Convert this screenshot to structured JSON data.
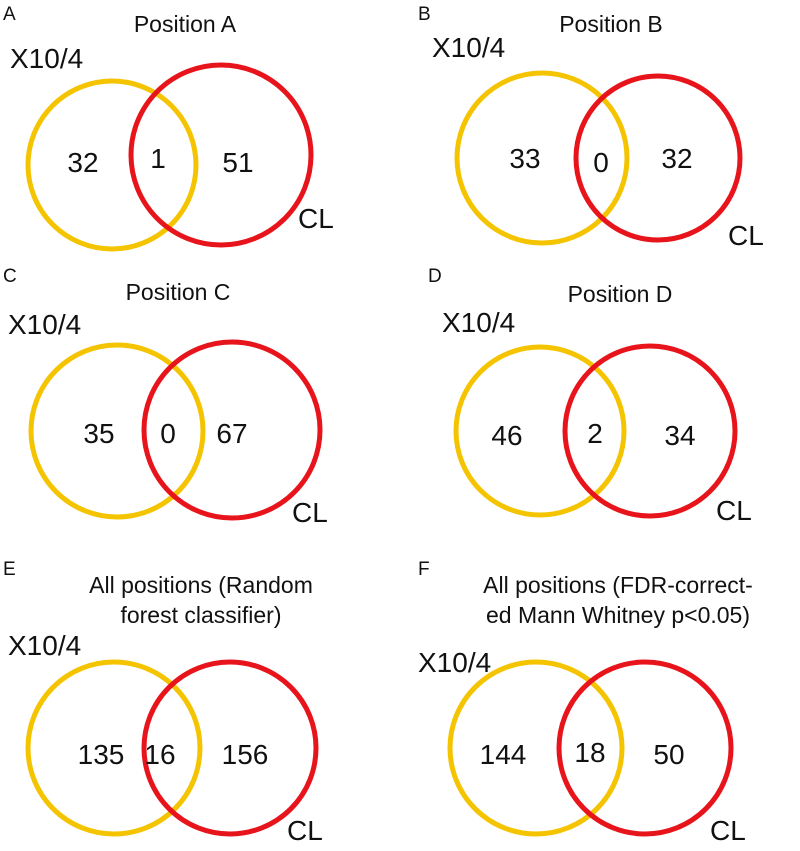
{
  "colors": {
    "set_a": "#f5c400",
    "set_b": "#e8141c",
    "text": "#111111",
    "background": "#ffffff"
  },
  "panels": [
    {
      "letter": "A",
      "title": [
        "Position A"
      ],
      "left_label": "X10/4",
      "right_label": "CL",
      "left_only": "32",
      "overlap": "1",
      "right_only": "51"
    },
    {
      "letter": "B",
      "title": [
        "Position B"
      ],
      "left_label": "X10/4",
      "right_label": "CL",
      "left_only": "33",
      "overlap": "0",
      "right_only": "32"
    },
    {
      "letter": "C",
      "title": [
        "Position C"
      ],
      "left_label": "X10/4",
      "right_label": "CL",
      "left_only": "35",
      "overlap": "0",
      "right_only": "67"
    },
    {
      "letter": "D",
      "title": [
        "Position D"
      ],
      "left_label": "X10/4",
      "right_label": "CL",
      "left_only": "46",
      "overlap": "2",
      "right_only": "34"
    },
    {
      "letter": "E",
      "title": [
        "All positions (Random",
        "forest classifier)"
      ],
      "left_label": "X10/4",
      "right_label": "CL",
      "left_only": "135",
      "overlap": "16",
      "right_only": "156"
    },
    {
      "letter": "F",
      "title": [
        "All positions (FDR-correct-",
        "ed Mann Whitney p<0.05)"
      ],
      "left_label": "X10/4",
      "right_label": "CL",
      "left_only": "144",
      "overlap": "18",
      "right_only": "50"
    }
  ]
}
